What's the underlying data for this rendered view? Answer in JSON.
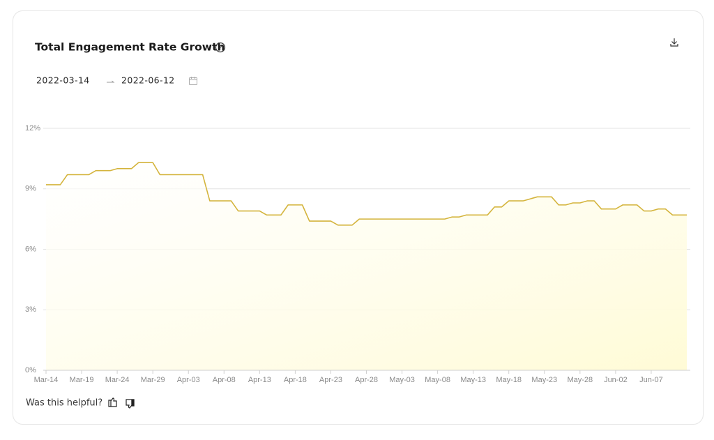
{
  "chart_data": {
    "type": "line",
    "title": "Total Engagement Rate Growth",
    "categories": [
      "Mar-14",
      null,
      null,
      null,
      null,
      "Mar-19",
      null,
      null,
      null,
      null,
      "Mar-24",
      null,
      null,
      null,
      null,
      "Mar-29",
      null,
      null,
      null,
      null,
      "Apr-03",
      null,
      null,
      null,
      null,
      "Apr-08",
      null,
      null,
      null,
      null,
      "Apr-13",
      null,
      null,
      null,
      null,
      "Apr-18",
      null,
      null,
      null,
      null,
      "Apr-23",
      null,
      null,
      null,
      null,
      "Apr-28",
      null,
      null,
      null,
      null,
      "May-03",
      null,
      null,
      null,
      null,
      "May-08",
      null,
      null,
      null,
      null,
      "May-13",
      null,
      null,
      null,
      null,
      "May-18",
      null,
      null,
      null,
      null,
      "May-23",
      null,
      null,
      null,
      null,
      "May-28",
      null,
      null,
      null,
      null,
      "Jun-02",
      null,
      null,
      null,
      null,
      "Jun-07",
      null,
      null,
      null,
      null,
      null
    ],
    "values": [
      9.2,
      9.2,
      9.2,
      9.7,
      9.7,
      9.7,
      9.7,
      9.9,
      9.9,
      9.9,
      10.0,
      10.0,
      10.0,
      10.3,
      10.3,
      10.3,
      9.7,
      9.7,
      9.7,
      9.7,
      9.7,
      9.7,
      9.7,
      8.4,
      8.4,
      8.4,
      8.4,
      7.9,
      7.9,
      7.9,
      7.9,
      7.7,
      7.7,
      7.7,
      8.2,
      8.2,
      8.2,
      7.4,
      7.4,
      7.4,
      7.4,
      7.2,
      7.2,
      7.2,
      7.5,
      7.5,
      7.5,
      7.5,
      7.5,
      7.5,
      7.5,
      7.5,
      7.5,
      7.5,
      7.5,
      7.5,
      7.5,
      7.6,
      7.6,
      7.7,
      7.7,
      7.7,
      7.7,
      8.1,
      8.1,
      8.4,
      8.4,
      8.4,
      8.5,
      8.6,
      8.6,
      8.6,
      8.2,
      8.2,
      8.3,
      8.3,
      8.4,
      8.4,
      8.0,
      8.0,
      8.0,
      8.2,
      8.2,
      8.2,
      7.9,
      7.9,
      8.0,
      8.0,
      7.7,
      7.7,
      7.7
    ],
    "color": "#d4b43c",
    "area_color": "#fffbd6",
    "ylim": [
      0,
      12
    ],
    "yticks": [
      {
        "value": 0,
        "label": "0%"
      },
      {
        "value": 3,
        "label": "3%"
      },
      {
        "value": 6,
        "label": "6%"
      },
      {
        "value": 9,
        "label": "9%"
      },
      {
        "value": 12,
        "label": "12%"
      }
    ],
    "grid": true
  },
  "date_range": {
    "start": "2022-03-14",
    "end": "2022-06-12"
  },
  "feedback": {
    "prompt": "Was this helpful?"
  }
}
